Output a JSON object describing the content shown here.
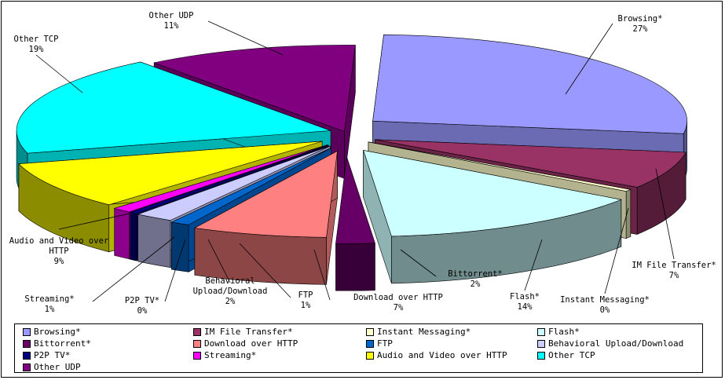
{
  "chart_data": {
    "type": "pie",
    "title": "",
    "slices": [
      {
        "name": "Browsing*",
        "label": "Browsing*",
        "percent_label": "27%",
        "value": 27,
        "color": "#9999ff"
      },
      {
        "name": "IM File Transfer*",
        "label": "IM File Transfer*",
        "percent_label": "7%",
        "value": 7,
        "color": "#993366"
      },
      {
        "name": "Instant Messaging*",
        "label": "Instant Messaging*",
        "percent_label": "0%",
        "value": 0.4,
        "color": "#ffffcc"
      },
      {
        "name": "Flash*",
        "label": "Flash*",
        "percent_label": "14%",
        "value": 14,
        "color": "#ccffff"
      },
      {
        "name": "Bittorrent*",
        "label": "Bittorrent*",
        "percent_label": "2%",
        "value": 2,
        "color": "#660066"
      },
      {
        "name": "Download over HTTP",
        "label": "Download over HTTP",
        "percent_label": "7%",
        "value": 7,
        "color": "#ff8080"
      },
      {
        "name": "FTP",
        "label": "FTP",
        "percent_label": "1%",
        "value": 1,
        "color": "#0066cc"
      },
      {
        "name": "Behavioral Upload/Download",
        "label": "Behavioral Upload/Download",
        "percent_label": "2%",
        "value": 2,
        "color": "#ccccff"
      },
      {
        "name": "P2P TV*",
        "label": "P2P TV*",
        "percent_label": "0%",
        "value": 0.4,
        "color": "#000080"
      },
      {
        "name": "Streaming*",
        "label": "Streaming*",
        "percent_label": "1%",
        "value": 1,
        "color": "#ff00ff"
      },
      {
        "name": "Audio and Video over HTTP",
        "label": "Audio and Video over HTTP",
        "percent_label": "9%",
        "value": 9,
        "color": "#ffff00"
      },
      {
        "name": "Other TCP",
        "label": "Other TCP",
        "percent_label": "19%",
        "value": 19,
        "color": "#00ffff"
      },
      {
        "name": "Other UDP",
        "label": "Other UDP",
        "percent_label": "11%",
        "value": 11,
        "color": "#800080"
      }
    ],
    "legend_position": "bottom"
  }
}
